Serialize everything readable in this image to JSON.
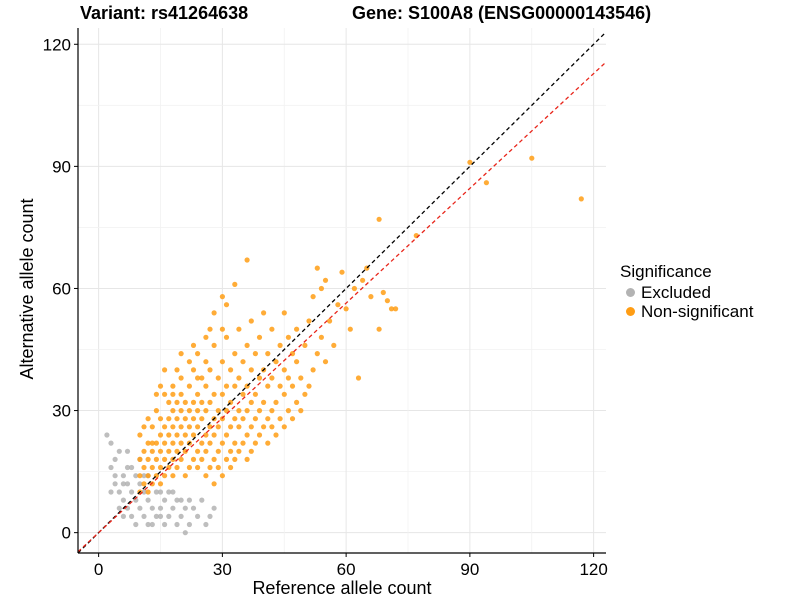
{
  "titles": {
    "variant": "Variant: rs41264638",
    "gene": "Gene: S100A8 (ENSG00000143546)"
  },
  "chart_data": {
    "type": "scatter",
    "xlabel": "Reference allele count",
    "ylabel": "Alternative allele count",
    "xlim": [
      -5,
      123
    ],
    "ylim": [
      -5,
      124
    ],
    "xticks": [
      0,
      30,
      60,
      90,
      120
    ],
    "yticks": [
      0,
      30,
      60,
      90,
      120
    ],
    "grid": true,
    "legend": {
      "title": "Significance",
      "position": "right",
      "entries": [
        {
          "label": "Excluded",
          "color": "#b3b3b3"
        },
        {
          "label": "Non-significant",
          "color": "#ff9d14"
        }
      ]
    },
    "reference_lines": [
      {
        "slope": 1.0,
        "intercept": 0,
        "style": "dashed",
        "color": "#000000"
      },
      {
        "slope": 0.94,
        "intercept": 0,
        "style": "dashed",
        "color": "#e8251a"
      }
    ],
    "series": [
      {
        "name": "Excluded",
        "color": "#b3b3b3",
        "points": [
          [
            2,
            24
          ],
          [
            3,
            22
          ],
          [
            3,
            16
          ],
          [
            4,
            18
          ],
          [
            4,
            12
          ],
          [
            5,
            20
          ],
          [
            5,
            10
          ],
          [
            6,
            14
          ],
          [
            6,
            8
          ],
          [
            7,
            12
          ],
          [
            7,
            16
          ],
          [
            7,
            6
          ],
          [
            8,
            10
          ],
          [
            8,
            4
          ],
          [
            9,
            8
          ],
          [
            9,
            14
          ],
          [
            10,
            6
          ],
          [
            10,
            12
          ],
          [
            11,
            4
          ],
          [
            11,
            10
          ],
          [
            12,
            8
          ],
          [
            12,
            2
          ],
          [
            13,
            6
          ],
          [
            14,
            4
          ],
          [
            14,
            10
          ],
          [
            15,
            6
          ],
          [
            16,
            2
          ],
          [
            17,
            4
          ],
          [
            18,
            6
          ],
          [
            19,
            2
          ],
          [
            20,
            4
          ],
          [
            21,
            6
          ],
          [
            22,
            2
          ],
          [
            24,
            4
          ],
          [
            26,
            2
          ],
          [
            28,
            6
          ],
          [
            21,
            0
          ],
          [
            5,
            6
          ],
          [
            6,
            12
          ],
          [
            8,
            16
          ],
          [
            9,
            2
          ],
          [
            12,
            14
          ],
          [
            13,
            2
          ],
          [
            15,
            10
          ],
          [
            16,
            8
          ],
          [
            18,
            10
          ],
          [
            20,
            8
          ],
          [
            22,
            8
          ],
          [
            23,
            6
          ],
          [
            25,
            8
          ],
          [
            27,
            4
          ],
          [
            19,
            8
          ],
          [
            17,
            10
          ],
          [
            11,
            14
          ],
          [
            10,
            18
          ],
          [
            7,
            20
          ],
          [
            4,
            14
          ],
          [
            3,
            10
          ],
          [
            6,
            4
          ],
          [
            15,
            4
          ]
        ]
      },
      {
        "name": "Non-significant",
        "color": "#ff9d14",
        "points": [
          [
            10,
            10
          ],
          [
            10,
            14
          ],
          [
            10,
            18
          ],
          [
            10,
            24
          ],
          [
            11,
            12
          ],
          [
            11,
            16
          ],
          [
            11,
            20
          ],
          [
            12,
            10
          ],
          [
            12,
            14
          ],
          [
            12,
            18
          ],
          [
            12,
            22
          ],
          [
            13,
            12
          ],
          [
            13,
            16
          ],
          [
            13,
            20
          ],
          [
            13,
            26
          ],
          [
            14,
            14
          ],
          [
            14,
            18
          ],
          [
            14,
            22
          ],
          [
            14,
            30
          ],
          [
            15,
            12
          ],
          [
            15,
            16
          ],
          [
            15,
            20
          ],
          [
            15,
            24
          ],
          [
            15,
            28
          ],
          [
            16,
            14
          ],
          [
            16,
            18
          ],
          [
            16,
            22
          ],
          [
            16,
            26
          ],
          [
            16,
            34
          ],
          [
            17,
            16
          ],
          [
            17,
            20
          ],
          [
            17,
            24
          ],
          [
            17,
            28
          ],
          [
            17,
            32
          ],
          [
            18,
            14
          ],
          [
            18,
            18
          ],
          [
            18,
            22
          ],
          [
            18,
            26
          ],
          [
            18,
            30
          ],
          [
            18,
            36
          ],
          [
            19,
            16
          ],
          [
            19,
            20
          ],
          [
            19,
            24
          ],
          [
            19,
            28
          ],
          [
            19,
            32
          ],
          [
            20,
            18
          ],
          [
            20,
            22
          ],
          [
            20,
            26
          ],
          [
            20,
            30
          ],
          [
            20,
            34
          ],
          [
            20,
            38
          ],
          [
            21,
            14
          ],
          [
            21,
            20
          ],
          [
            21,
            24
          ],
          [
            21,
            28
          ],
          [
            21,
            32
          ],
          [
            22,
            16
          ],
          [
            22,
            22
          ],
          [
            22,
            26
          ],
          [
            22,
            30
          ],
          [
            22,
            36
          ],
          [
            23,
            18
          ],
          [
            23,
            24
          ],
          [
            23,
            28
          ],
          [
            23,
            32
          ],
          [
            23,
            40
          ],
          [
            24,
            16
          ],
          [
            24,
            20
          ],
          [
            24,
            26
          ],
          [
            24,
            30
          ],
          [
            24,
            34
          ],
          [
            24,
            44
          ],
          [
            25,
            18
          ],
          [
            25,
            22
          ],
          [
            25,
            28
          ],
          [
            25,
            32
          ],
          [
            25,
            38
          ],
          [
            26,
            14
          ],
          [
            26,
            20
          ],
          [
            26,
            24
          ],
          [
            26,
            30
          ],
          [
            26,
            36
          ],
          [
            26,
            42
          ],
          [
            27,
            16
          ],
          [
            27,
            22
          ],
          [
            27,
            26
          ],
          [
            27,
            32
          ],
          [
            27,
            40
          ],
          [
            28,
            12
          ],
          [
            28,
            18
          ],
          [
            28,
            24
          ],
          [
            28,
            28
          ],
          [
            28,
            34
          ],
          [
            28,
            46
          ],
          [
            29,
            16
          ],
          [
            29,
            20
          ],
          [
            29,
            26
          ],
          [
            29,
            30
          ],
          [
            29,
            38
          ],
          [
            30,
            14
          ],
          [
            30,
            22
          ],
          [
            30,
            28
          ],
          [
            30,
            34
          ],
          [
            30,
            42
          ],
          [
            31,
            18
          ],
          [
            31,
            24
          ],
          [
            31,
            30
          ],
          [
            31,
            36
          ],
          [
            31,
            48
          ],
          [
            32,
            16
          ],
          [
            32,
            20
          ],
          [
            32,
            26
          ],
          [
            32,
            32
          ],
          [
            32,
            40
          ],
          [
            33,
            18
          ],
          [
            33,
            22
          ],
          [
            33,
            28
          ],
          [
            33,
            36
          ],
          [
            33,
            44
          ],
          [
            34,
            20
          ],
          [
            34,
            26
          ],
          [
            34,
            30
          ],
          [
            34,
            38
          ],
          [
            34,
            50
          ],
          [
            35,
            22
          ],
          [
            35,
            28
          ],
          [
            35,
            34
          ],
          [
            35,
            42
          ],
          [
            36,
            18
          ],
          [
            36,
            24
          ],
          [
            36,
            30
          ],
          [
            36,
            36
          ],
          [
            36,
            46
          ],
          [
            37,
            20
          ],
          [
            37,
            26
          ],
          [
            37,
            32
          ],
          [
            37,
            40
          ],
          [
            37,
            52
          ],
          [
            38,
            22
          ],
          [
            38,
            28
          ],
          [
            38,
            34
          ],
          [
            38,
            44
          ],
          [
            39,
            24
          ],
          [
            39,
            30
          ],
          [
            39,
            38
          ],
          [
            39,
            48
          ],
          [
            40,
            26
          ],
          [
            40,
            32
          ],
          [
            40,
            40
          ],
          [
            40,
            54
          ],
          [
            41,
            22
          ],
          [
            41,
            28
          ],
          [
            41,
            36
          ],
          [
            41,
            44
          ],
          [
            42,
            26
          ],
          [
            42,
            30
          ],
          [
            42,
            38
          ],
          [
            42,
            50
          ],
          [
            43,
            24
          ],
          [
            43,
            32
          ],
          [
            43,
            42
          ],
          [
            44,
            28
          ],
          [
            44,
            36
          ],
          [
            44,
            46
          ],
          [
            45,
            26
          ],
          [
            45,
            34
          ],
          [
            45,
            40
          ],
          [
            45,
            54
          ],
          [
            46,
            30
          ],
          [
            46,
            38
          ],
          [
            46,
            48
          ],
          [
            47,
            28
          ],
          [
            47,
            36
          ],
          [
            47,
            44
          ],
          [
            48,
            32
          ],
          [
            48,
            42
          ],
          [
            48,
            50
          ],
          [
            49,
            30
          ],
          [
            49,
            38
          ],
          [
            50,
            34
          ],
          [
            50,
            46
          ],
          [
            51,
            36
          ],
          [
            51,
            52
          ],
          [
            52,
            40
          ],
          [
            52,
            58
          ],
          [
            53,
            44
          ],
          [
            53,
            65
          ],
          [
            54,
            48
          ],
          [
            54,
            60
          ],
          [
            55,
            42
          ],
          [
            55,
            62
          ],
          [
            56,
            52
          ],
          [
            57,
            46
          ],
          [
            58,
            56
          ],
          [
            59,
            64
          ],
          [
            60,
            55
          ],
          [
            61,
            50
          ],
          [
            62,
            60
          ],
          [
            63,
            38
          ],
          [
            64,
            62
          ],
          [
            65,
            65
          ],
          [
            66,
            58
          ],
          [
            68,
            50
          ],
          [
            68,
            77
          ],
          [
            69,
            59
          ],
          [
            70,
            57
          ],
          [
            71,
            55
          ],
          [
            72,
            55
          ],
          [
            77,
            73
          ],
          [
            90,
            91
          ],
          [
            94,
            86
          ],
          [
            105,
            92
          ],
          [
            117,
            82
          ],
          [
            11,
            26
          ],
          [
            12,
            28
          ],
          [
            14,
            34
          ],
          [
            15,
            36
          ],
          [
            16,
            40
          ],
          [
            13,
            22
          ],
          [
            19,
            40
          ],
          [
            20,
            44
          ],
          [
            22,
            42
          ],
          [
            23,
            46
          ],
          [
            27,
            50
          ],
          [
            28,
            54
          ],
          [
            30,
            58
          ],
          [
            31,
            56
          ],
          [
            33,
            61
          ],
          [
            36,
            67
          ],
          [
            30,
            50
          ],
          [
            26,
            48
          ],
          [
            24,
            38
          ],
          [
            18,
            34
          ]
        ]
      }
    ]
  }
}
